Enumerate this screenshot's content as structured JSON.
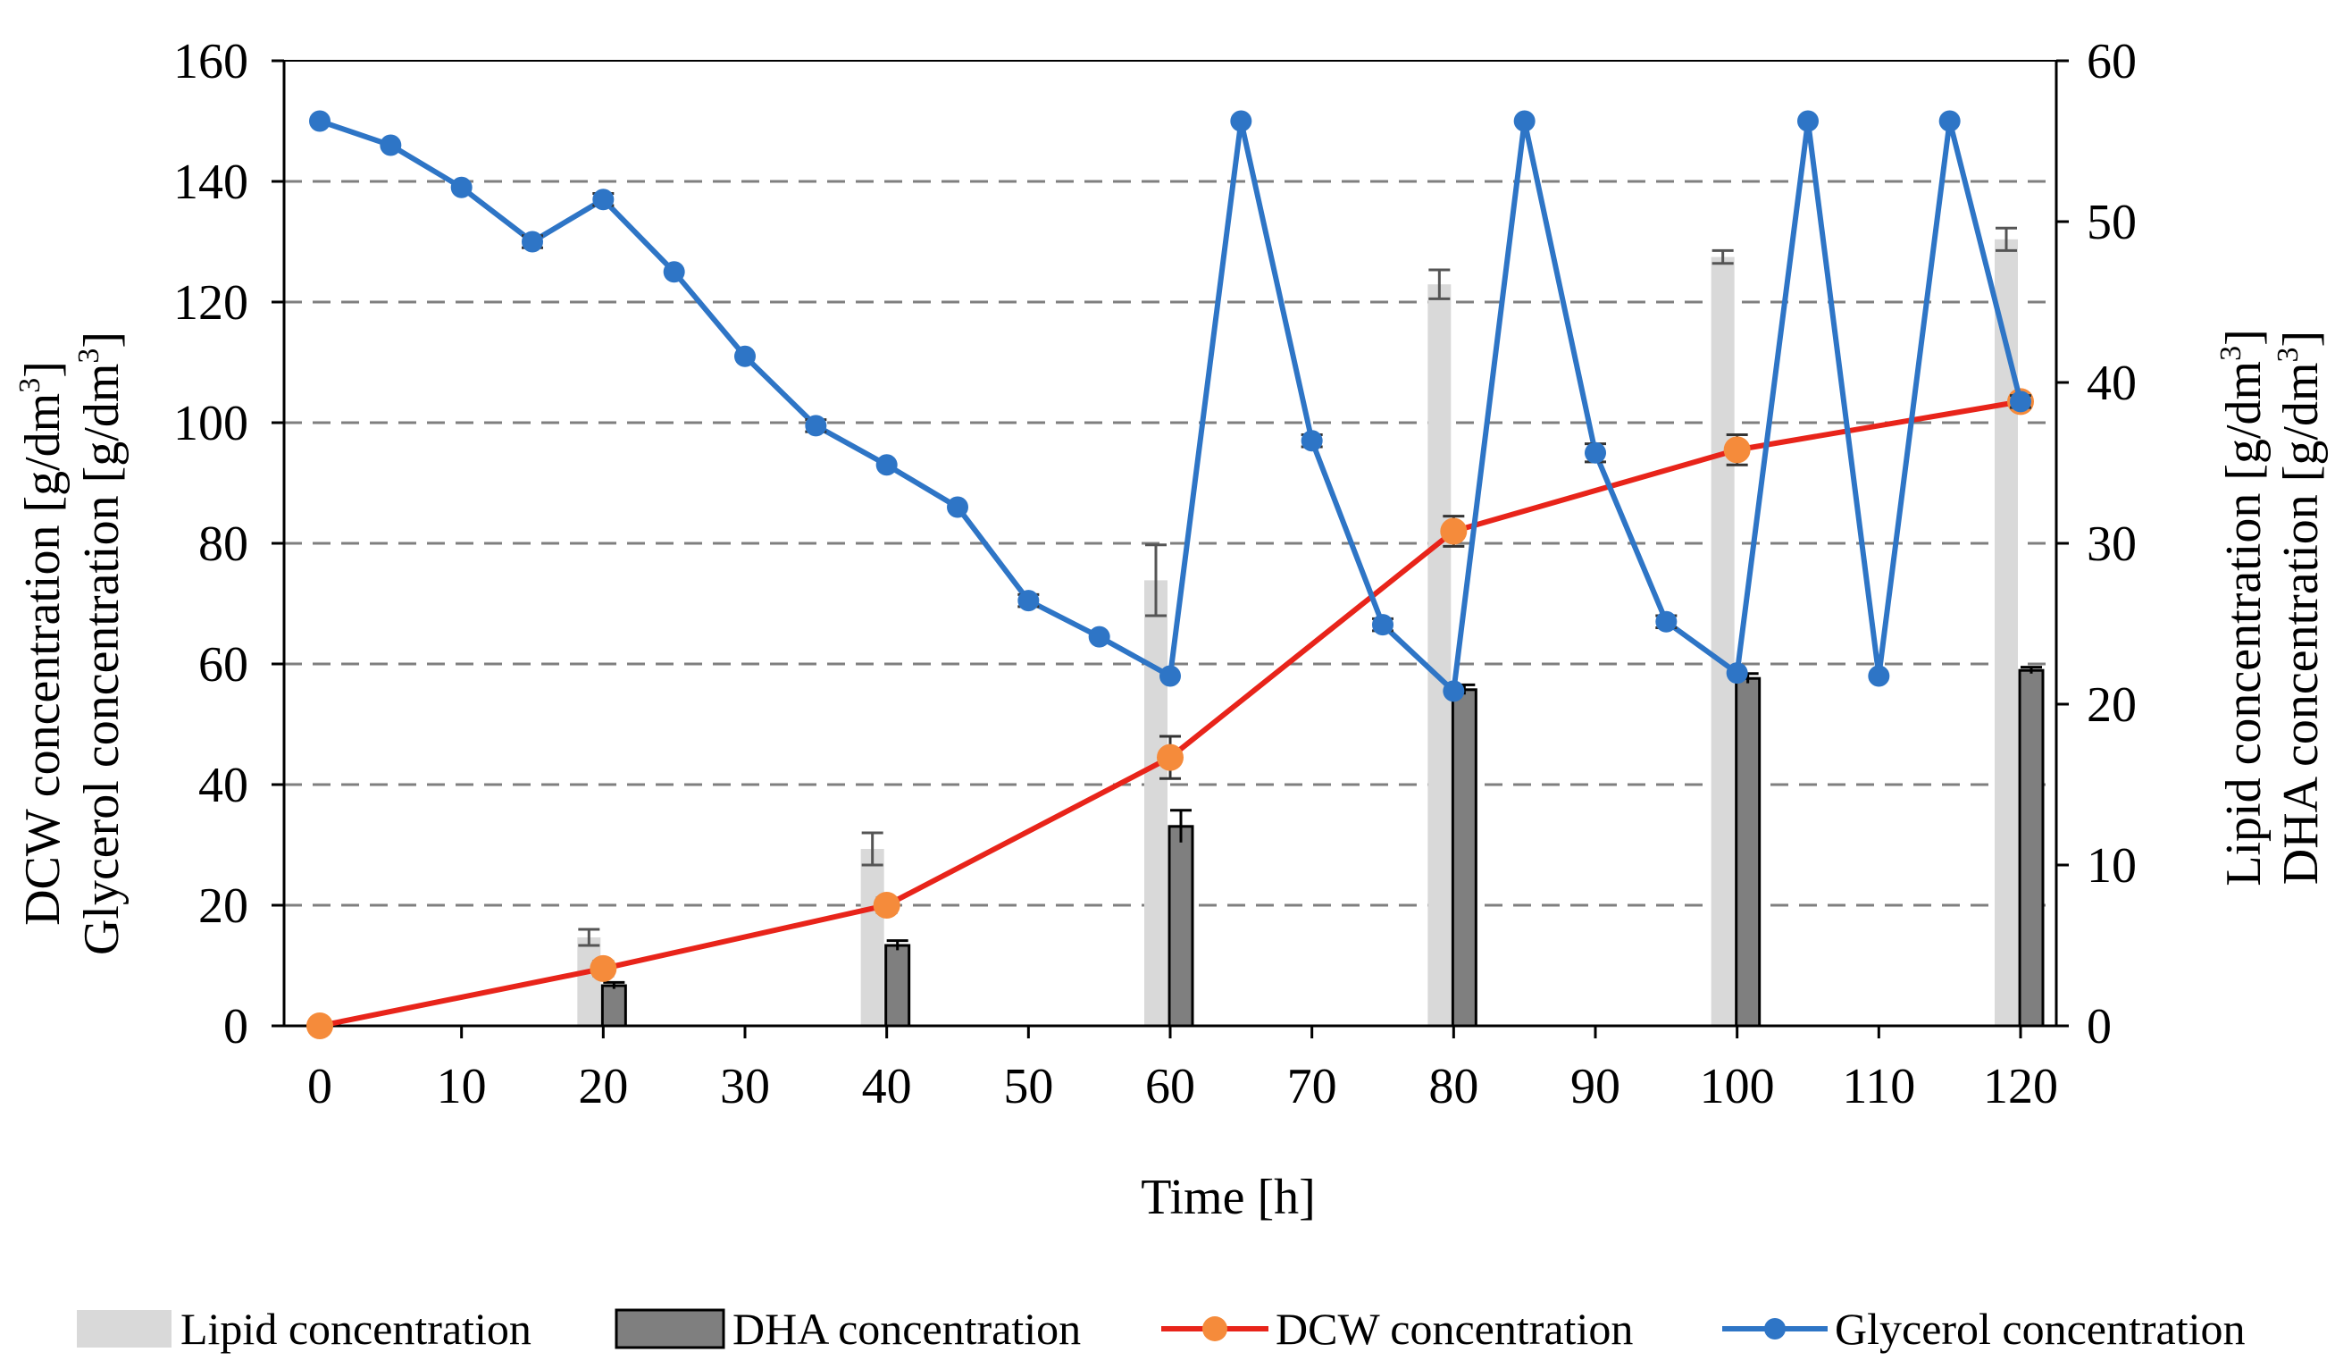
{
  "chart_data": {
    "type": "combo",
    "x_axis": {
      "label": "Time [h]",
      "range": [
        0,
        120
      ],
      "ticks": [
        0,
        10,
        20,
        30,
        40,
        50,
        60,
        70,
        80,
        90,
        100,
        110,
        120
      ]
    },
    "y_left": {
      "label_line1_main": "DCW concentration [g/dm",
      "label_line2_main": "Glycerol concentration [g/dm",
      "label_exponent": "3",
      "label_close": "]",
      "range": [
        0,
        160
      ],
      "ticks": [
        0,
        20,
        40,
        60,
        80,
        100,
        120,
        140,
        160
      ]
    },
    "y_right": {
      "label_line1_main": "Lipid concentration [g/dm",
      "label_line2_main": "DHA concentration [g/dm",
      "label_exponent": "3",
      "label_close": "]",
      "range": [
        0,
        60
      ],
      "ticks": [
        0,
        10,
        20,
        30,
        40,
        50,
        60
      ]
    },
    "grid": "horizontal dashed",
    "legend_position": "bottom",
    "series": [
      {
        "name": "Lipid concentration",
        "kind": "bar",
        "axis": "right",
        "color": "#d9d9d9",
        "x": [
          20,
          40,
          60,
          80,
          100,
          120
        ],
        "values": [
          5.5,
          11.0,
          27.7,
          46.1,
          47.8,
          48.9
        ],
        "errors": [
          0.5,
          1.0,
          2.2,
          0.9,
          0.4,
          0.7
        ]
      },
      {
        "name": "DHA concentration",
        "kind": "bar",
        "axis": "right",
        "color": "#7f7f7f",
        "x": [
          20,
          40,
          60,
          80,
          100,
          120
        ],
        "values": [
          2.5,
          5.0,
          12.4,
          20.9,
          21.6,
          22.1
        ],
        "errors": [
          0.2,
          0.3,
          1.0,
          0.3,
          0.3,
          0.2
        ]
      },
      {
        "name": "DCW concentration",
        "kind": "line",
        "axis": "left",
        "color": "#e8241a",
        "marker_color": "#f58b3b",
        "x": [
          0,
          20,
          40,
          60,
          80,
          100,
          120
        ],
        "values": [
          0,
          9.5,
          20,
          44.5,
          82,
          95.5,
          103.5
        ],
        "errors": [
          0,
          1.2,
          1.2,
          3.5,
          2.5,
          2.5,
          1.0
        ]
      },
      {
        "name": "Glycerol concentration",
        "kind": "line",
        "axis": "left",
        "color": "#2e75c6",
        "x": [
          0,
          5,
          10,
          15,
          20,
          25,
          30,
          35,
          40,
          45,
          50,
          55,
          60,
          65,
          70,
          75,
          80,
          85,
          90,
          95,
          100,
          105,
          110,
          115,
          120
        ],
        "values": [
          150,
          146,
          139,
          130,
          137,
          125,
          111,
          99.5,
          93,
          86,
          70.5,
          64.5,
          58,
          150,
          97,
          66.5,
          55.5,
          150,
          95,
          67,
          58.5,
          150,
          58,
          150,
          103.5
        ],
        "errors": [
          0,
          0,
          0,
          1.0,
          1.0,
          0,
          0,
          1.0,
          0,
          0,
          1.0,
          0,
          0,
          0,
          1.0,
          1.0,
          0,
          0,
          1.5,
          1.0,
          0,
          0,
          0,
          0,
          1.0
        ]
      }
    ]
  }
}
